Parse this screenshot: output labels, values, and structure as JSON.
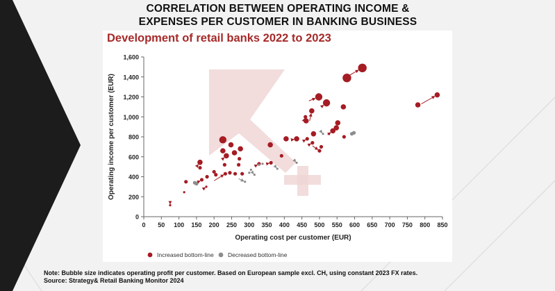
{
  "page": {
    "title_line1": "CORRELATION BETWEEN OPERATING INCOME &",
    "title_line2": "EXPENSES PER CUSTOMER IN BANKING BUSINESS"
  },
  "chart_card": {
    "title": "Development of retail banks 2022 to 2023"
  },
  "footnote": {
    "note": "Note: Bubble size indicates operating profit per customer. Based on European sample excl. CH, using constant 2023 FX rates.",
    "source": "Source: Strategy& Retail Banking Monitor 2024"
  },
  "colors": {
    "increased": "#a51c24",
    "decreased": "#8c8c8c",
    "watermark": "#f0d6d6",
    "left_band": "#1c1c1c"
  },
  "chart_data": {
    "type": "scatter",
    "title": "Development of retail banks 2022 to 2023",
    "xlabel": "Operating cost per customer (EUR)",
    "ylabel": "Operating income per customer (EUR)",
    "xlim": [
      0,
      850
    ],
    "ylim": [
      0,
      1600
    ],
    "xticks": [
      0,
      50,
      100,
      150,
      200,
      250,
      300,
      350,
      400,
      450,
      500,
      550,
      600,
      650,
      700,
      750,
      800,
      850
    ],
    "yticks": [
      0,
      200,
      400,
      600,
      800,
      1000,
      1200,
      1400,
      1600
    ],
    "ytick_labels": [
      "0",
      "200",
      "400",
      "600",
      "800",
      "1,000",
      "1,200",
      "1,400",
      "1,600"
    ],
    "legend": {
      "position": "bottom-left",
      "items": [
        "Increased bottom-line",
        "Decreased bottom-line"
      ]
    },
    "series": [
      {
        "name": "Increased bottom-line",
        "points": [
          {
            "x": 75,
            "y": 115,
            "from": [
              75,
              145
            ],
            "size": "xs"
          },
          {
            "x": 120,
            "y": 350,
            "from": [
              115,
              330
            ],
            "size": "sm"
          },
          {
            "x": 115,
            "y": 245,
            "from": [
              110,
              230
            ],
            "size": "xs"
          },
          {
            "x": 160,
            "y": 545,
            "from": [
              150,
              500
            ],
            "size": "md"
          },
          {
            "x": 160,
            "y": 490,
            "from": [
              158,
              470
            ],
            "size": "sm"
          },
          {
            "x": 165,
            "y": 370,
            "from": [
              150,
              340
            ],
            "size": "sm"
          },
          {
            "x": 180,
            "y": 400,
            "from": [
              175,
              390
            ],
            "size": "sm"
          },
          {
            "x": 178,
            "y": 300,
            "from": [
              170,
              280
            ],
            "size": "xs"
          },
          {
            "x": 200,
            "y": 450,
            "from": [
              195,
              440
            ],
            "size": "sm"
          },
          {
            "x": 205,
            "y": 420,
            "from": [
              200,
              410
            ],
            "size": "sm"
          },
          {
            "x": 225,
            "y": 770,
            "from": [
              220,
              740
            ],
            "size": "lg"
          },
          {
            "x": 225,
            "y": 660,
            "from": [
              220,
              640
            ],
            "size": "md"
          },
          {
            "x": 230,
            "y": 520,
            "from": [
              225,
              500
            ],
            "size": "sm"
          },
          {
            "x": 235,
            "y": 610,
            "from": [
              225,
              580
            ],
            "size": "md"
          },
          {
            "x": 232,
            "y": 430,
            "from": [
              200,
              360
            ],
            "size": "sm"
          },
          {
            "x": 245,
            "y": 440,
            "from": [
              238,
              430
            ],
            "size": "sm"
          },
          {
            "x": 248,
            "y": 720,
            "from": [
              243,
              700
            ],
            "size": "md"
          },
          {
            "x": 258,
            "y": 640,
            "from": [
              252,
              620
            ],
            "size": "md"
          },
          {
            "x": 260,
            "y": 430,
            "from": [
              255,
              420
            ],
            "size": "sm"
          },
          {
            "x": 270,
            "y": 520,
            "from": [
              265,
              510
            ],
            "size": "sm"
          },
          {
            "x": 272,
            "y": 580,
            "from": [
              266,
              565
            ],
            "size": "sm"
          },
          {
            "x": 275,
            "y": 680,
            "from": [
              270,
              660
            ],
            "size": "md"
          },
          {
            "x": 280,
            "y": 430,
            "from": [
              275,
              420
            ],
            "size": "sm"
          },
          {
            "x": 328,
            "y": 530,
            "from": [
              318,
              510
            ],
            "size": "sm"
          },
          {
            "x": 360,
            "y": 720,
            "from": [
              355,
              690
            ],
            "size": "md"
          },
          {
            "x": 362,
            "y": 540,
            "from": [
              350,
              530
            ],
            "size": "sm"
          },
          {
            "x": 392,
            "y": 610,
            "from": [
              385,
              600
            ],
            "size": "sm"
          },
          {
            "x": 405,
            "y": 780,
            "from": [
              398,
              760
            ],
            "size": "md"
          },
          {
            "x": 435,
            "y": 780,
            "from": [
              420,
              770
            ],
            "size": "md"
          },
          {
            "x": 460,
            "y": 1000,
            "from": [
              455,
              960
            ],
            "size": "sm"
          },
          {
            "x": 462,
            "y": 960,
            "from": [
              455,
              940
            ],
            "size": "md"
          },
          {
            "x": 465,
            "y": 780,
            "from": [
              455,
              760
            ],
            "size": "sm"
          },
          {
            "x": 478,
            "y": 1060,
            "from": [
              472,
              960
            ],
            "size": "md"
          },
          {
            "x": 480,
            "y": 740,
            "from": [
              470,
              720
            ],
            "size": "sm"
          },
          {
            "x": 483,
            "y": 830,
            "from": [
              478,
              810
            ],
            "size": "md"
          },
          {
            "x": 498,
            "y": 1200,
            "from": [
              470,
              1160
            ],
            "size": "lg"
          },
          {
            "x": 500,
            "y": 660,
            "from": [
              480,
              710
            ],
            "size": "sm"
          },
          {
            "x": 505,
            "y": 700,
            "from": [
              498,
              690
            ],
            "size": "sm"
          },
          {
            "x": 520,
            "y": 1140,
            "from": [
              505,
              1100
            ],
            "size": "lg"
          },
          {
            "x": 538,
            "y": 860,
            "from": [
              523,
              820
            ],
            "size": "md"
          },
          {
            "x": 548,
            "y": 890,
            "from": [
              540,
              880
            ],
            "size": "md"
          },
          {
            "x": 552,
            "y": 940,
            "from": [
              545,
              920
            ],
            "size": "md"
          },
          {
            "x": 568,
            "y": 1100,
            "from": [
              565,
              1070
            ],
            "size": "md"
          },
          {
            "x": 570,
            "y": 800,
            "from": [
              568,
              780
            ],
            "size": "sm"
          },
          {
            "x": 578,
            "y": 1390,
            "from": [
              570,
              1370
            ],
            "size": "xl"
          },
          {
            "x": 622,
            "y": 1490,
            "from": [
              582,
              1410
            ],
            "size": "xl"
          },
          {
            "x": 780,
            "y": 1120,
            "from": [
              775,
              1110
            ],
            "size": "md"
          },
          {
            "x": 835,
            "y": 1220,
            "from": [
              790,
              1130
            ],
            "size": "md"
          }
        ]
      },
      {
        "name": "Decreased bottom-line",
        "points": [
          {
            "x": 145,
            "y": 340,
            "from": [
              145,
              360
            ],
            "size": "sm"
          },
          {
            "x": 150,
            "y": 330,
            "from": [
              150,
              350
            ],
            "size": "sm"
          },
          {
            "x": 288,
            "y": 350,
            "from": [
              270,
              380
            ],
            "size": "xs"
          },
          {
            "x": 300,
            "y": 440,
            "from": [
              295,
              450
            ],
            "size": "xs"
          },
          {
            "x": 305,
            "y": 470,
            "from": [
              305,
              490
            ],
            "size": "xs"
          },
          {
            "x": 315,
            "y": 420,
            "from": [
              310,
              440
            ],
            "size": "xs"
          },
          {
            "x": 328,
            "y": 520,
            "from": [
              325,
              540
            ],
            "size": "xs"
          },
          {
            "x": 338,
            "y": 530,
            "from": [
              335,
              550
            ],
            "size": "xs"
          },
          {
            "x": 380,
            "y": 480,
            "from": [
              375,
              500
            ],
            "size": "xs"
          },
          {
            "x": 435,
            "y": 540,
            "from": [
              430,
              560
            ],
            "size": "xs"
          },
          {
            "x": 510,
            "y": 830,
            "from": [
              505,
              850
            ],
            "size": "xs"
          },
          {
            "x": 592,
            "y": 830,
            "from": [
              585,
              850
            ],
            "size": "sm"
          },
          {
            "x": 598,
            "y": 840,
            "from": [
              595,
              860
            ],
            "size": "sm"
          }
        ]
      }
    ]
  }
}
